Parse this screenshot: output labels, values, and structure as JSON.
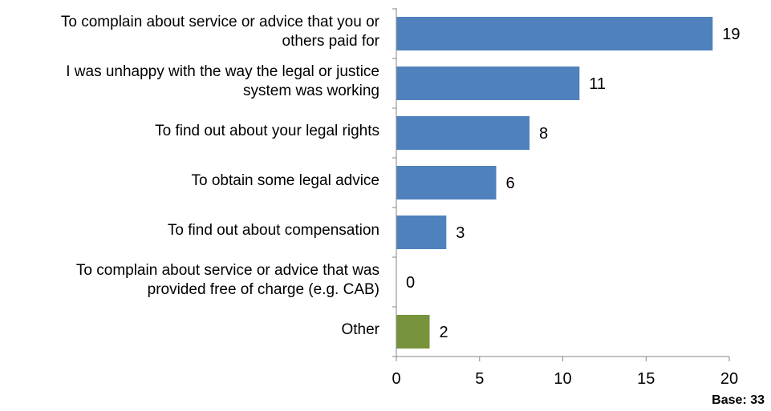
{
  "chart_data": {
    "type": "bar",
    "orientation": "horizontal",
    "categories": [
      "To complain about service or advice that you or others paid for",
      "I was unhappy with the way the legal or justice system was working",
      "To find out about your legal rights",
      "To obtain some legal advice",
      "To find out about compensation",
      "To complain about service or advice that was provided free of charge  (e.g. CAB)",
      "Other"
    ],
    "category_lines": [
      [
        "To complain about service or advice that you or",
        "others paid for"
      ],
      [
        "I was unhappy with the way the legal or justice",
        "system was working"
      ],
      [
        "To find out about your legal rights"
      ],
      [
        "To obtain some legal advice"
      ],
      [
        "To find out about compensation"
      ],
      [
        "To complain about service or advice that was",
        "provided free of charge  (e.g. CAB)"
      ],
      [
        "Other"
      ]
    ],
    "values": [
      19,
      11,
      8,
      6,
      3,
      0,
      2
    ],
    "value_labels": [
      "19",
      "11",
      "8",
      "6",
      "3",
      "0",
      "2"
    ],
    "bar_colors": [
      "#4F81BD",
      "#4F81BD",
      "#4F81BD",
      "#4F81BD",
      "#4F81BD",
      "#4F81BD",
      "#77933C"
    ],
    "xlim": [
      0,
      20
    ],
    "xticks": [
      0,
      5,
      10,
      15,
      20
    ],
    "xtick_labels": [
      "0",
      "5",
      "10",
      "15",
      "20"
    ],
    "grid": false,
    "legend": "none",
    "title": "",
    "xlabel": "",
    "ylabel": ""
  },
  "note": "Base: 33"
}
